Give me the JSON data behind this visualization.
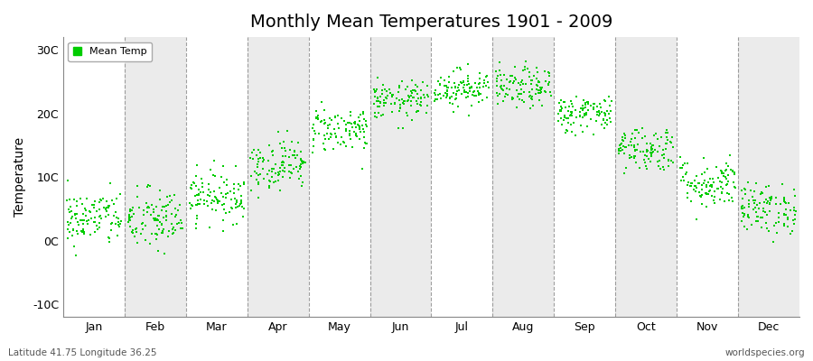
{
  "title": "Monthly Mean Temperatures 1901 - 2009",
  "ylabel": "Temperature",
  "bottom_left_text": "Latitude 41.75 Longitude 36.25",
  "bottom_right_text": "worldspecies.org",
  "legend_label": "Mean Temp",
  "dot_color": "#00CC00",
  "band_colors": [
    "#FFFFFF",
    "#EBEBEB"
  ],
  "fig_bg_color": "#FFFFFF",
  "yticks": [
    -10,
    0,
    10,
    20,
    30
  ],
  "ytick_labels": [
    "-10C",
    "0C",
    "10C",
    "20C",
    "30C"
  ],
  "ylim": [
    -12,
    32
  ],
  "months": [
    "Jan",
    "Feb",
    "Mar",
    "Apr",
    "May",
    "Jun",
    "Jul",
    "Aug",
    "Sep",
    "Oct",
    "Nov",
    "Dec"
  ],
  "mean_temps": [
    3.5,
    3.2,
    7.0,
    12.0,
    17.5,
    22.0,
    24.0,
    24.0,
    20.0,
    14.5,
    9.0,
    5.0
  ],
  "std_temps": [
    2.2,
    2.5,
    2.0,
    2.0,
    1.8,
    1.5,
    1.5,
    1.6,
    1.5,
    1.8,
    2.0,
    2.0
  ],
  "n_years": 109,
  "random_seed": 42,
  "marker_size": 4,
  "dpi": 100,
  "figsize": [
    9.0,
    4.0
  ],
  "title_fontsize": 14,
  "axis_fontsize": 9,
  "ylabel_fontsize": 10
}
